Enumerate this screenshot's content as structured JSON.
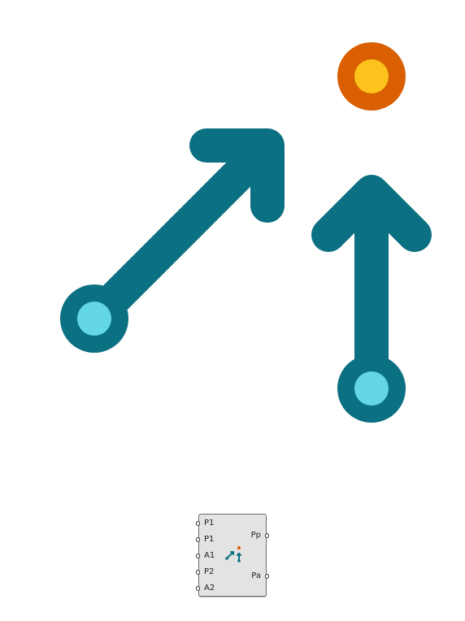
{
  "colors": {
    "arrow": "#0c7083",
    "point_outer": "#0c7083",
    "point_inner": "#63d7e6",
    "target_outer": "#d95f00",
    "target_inner": "#fbc31c",
    "component_fill": "#e3e3e3",
    "component_border": "#6e6e6e"
  },
  "icons": {
    "diagonal_arrow": "arrow-up-right-icon",
    "vertical_arrow": "arrow-up-icon",
    "target": "target-point-icon"
  },
  "component": {
    "icon": "point-arrows-icon",
    "inputs": [
      "P1",
      "P1",
      "A1",
      "P2",
      "A2"
    ],
    "outputs": [
      "Pp",
      "Pa"
    ]
  }
}
